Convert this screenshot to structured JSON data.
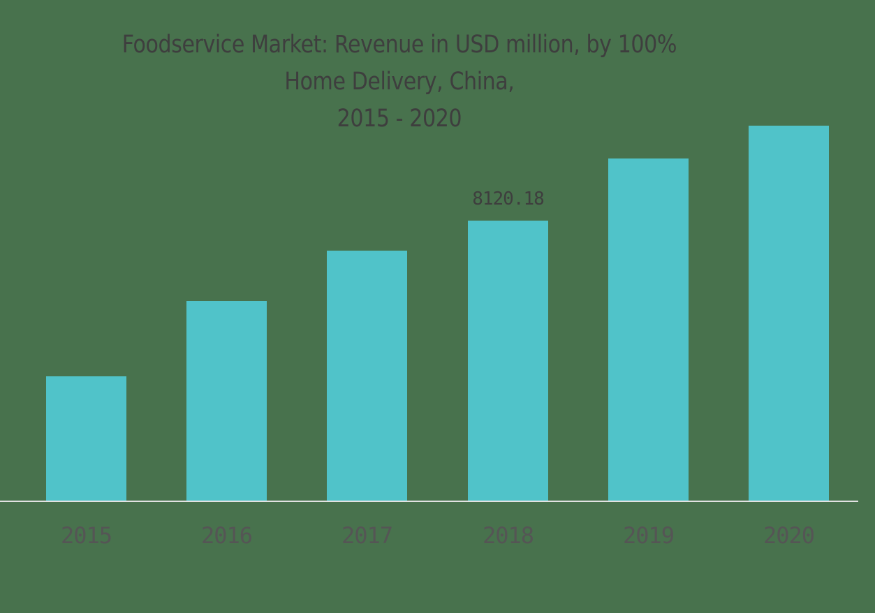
{
  "chart_data": {
    "type": "bar",
    "title": "Foodservice Market: Revenue in USD million, by 100% Home Delivery, China, 2015 - 2020",
    "title_lines": [
      "Foodservice Market: Revenue in USD million, by 100%",
      "Home Delivery, China,",
      "2015 - 2020"
    ],
    "categories": [
      "2015",
      "2016",
      "2017",
      "2018",
      "2019",
      "2020"
    ],
    "values": [
      3605,
      5791,
      7249,
      8120.18,
      9922,
      10874
    ],
    "data_labels": [
      {
        "category": "2018",
        "text": "8120.18"
      }
    ],
    "xlabel": "",
    "ylabel": "",
    "ylim": [
      0,
      11000
    ],
    "grid": false,
    "legend": null,
    "colors": {
      "bar": "#50c3c9",
      "background": "#48724d",
      "text": "#3e3e3e",
      "axis": "#e2e2e2"
    }
  }
}
